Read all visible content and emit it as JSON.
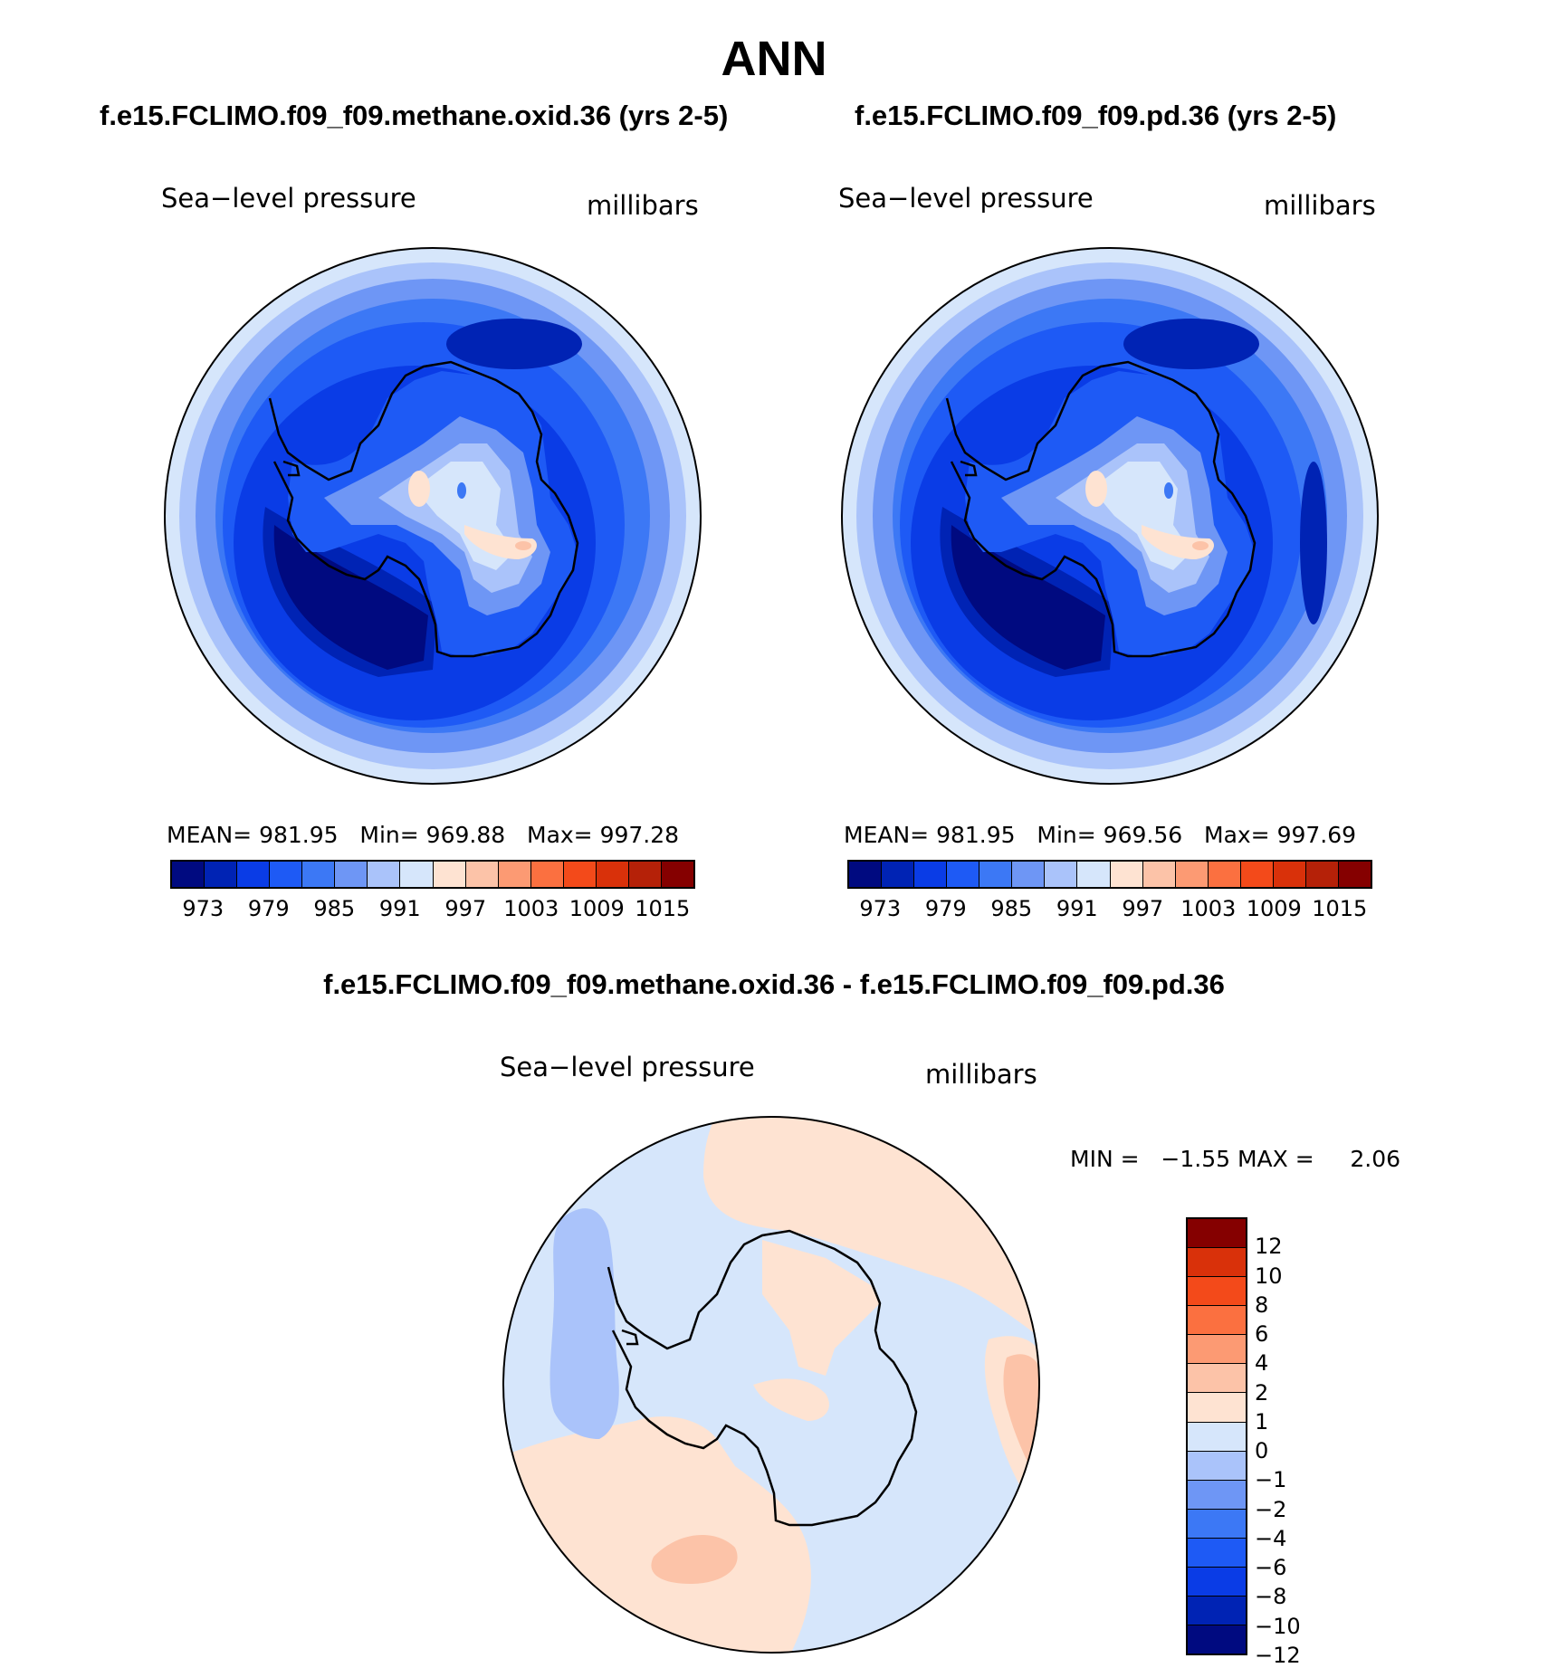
{
  "title": "ANN",
  "colors": {
    "abs_scale": [
      "#000a80",
      "#0023b4",
      "#0a3ce6",
      "#1e5af5",
      "#3c78f5",
      "#6e96f5",
      "#aac3fa",
      "#d6e6fb",
      "#fee3d2",
      "#fcc3a8",
      "#fc9a73",
      "#fb7040",
      "#f34a1a",
      "#d9310a",
      "#b52108",
      "#850000"
    ],
    "diff_scale": [
      "#000a80",
      "#0023b4",
      "#0a3ce6",
      "#1e5af5",
      "#3c78f5",
      "#6e96f5",
      "#aac3fa",
      "#d6e6fb",
      "#fee3d2",
      "#fcc3a8",
      "#fc9a73",
      "#fb7040",
      "#f34a1a",
      "#d9310a",
      "#850000"
    ],
    "coast": "#000000"
  },
  "panels": [
    {
      "case": "f.e15.FCLIMO.f09_f09.methane.oxid.36 (yrs 2-5)",
      "variable": "Sea−level  pressure",
      "units": "millibars",
      "stats": {
        "mean_label": "MEAN=",
        "mean": "981.95",
        "min_label": "Min=",
        "min": "969.88",
        "max_label": "Max=",
        "max": "997.28"
      },
      "colorbar_ticks": [
        "973",
        "979",
        "985",
        "991",
        "997",
        "1003",
        "1009",
        "1015"
      ]
    },
    {
      "case": "f.e15.FCLIMO.f09_f09.pd.36 (yrs 2-5)",
      "variable": "Sea−level  pressure",
      "units": "millibars",
      "stats": {
        "mean_label": "MEAN=",
        "mean": "981.95",
        "min_label": "Min=",
        "min": "969.56",
        "max_label": "Max=",
        "max": "997.69"
      },
      "colorbar_ticks": [
        "973",
        "979",
        "985",
        "991",
        "997",
        "1003",
        "1009",
        "1015"
      ]
    }
  ],
  "difference": {
    "case": "f.e15.FCLIMO.f09_f09.methane.oxid.36 - f.e15.FCLIMO.f09_f09.pd.36",
    "variable": "Sea−level  pressure",
    "units": "millibars",
    "min_label": "MIN =",
    "min": "−1.55",
    "max_label": "MAX =",
    "max": "2.06",
    "colorbar_ticks": [
      "12",
      "10",
      "8",
      "6",
      "4",
      "2",
      "1",
      "0",
      "−1",
      "−2",
      "−4",
      "−6",
      "−8",
      "−10",
      "−12"
    ]
  }
}
